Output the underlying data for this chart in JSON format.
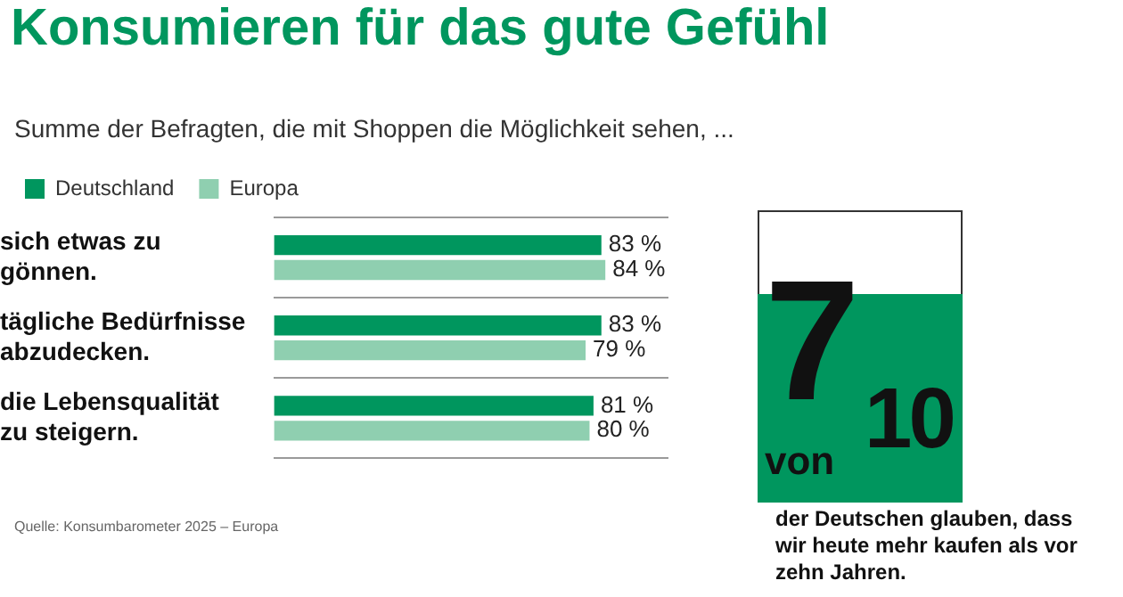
{
  "chart_data": [
    {
      "type": "bar",
      "orientation": "horizontal",
      "title": "Konsumieren für das gute Gefühl",
      "subtitle": "Summe der Befragten, die mit Shoppen die Möglichkeit sehen, ...",
      "categories": [
        "sich etwas zu gönnen.",
        "tägliche Bedürfnisse abzudecken.",
        "die Lebensqualität zu steigern."
      ],
      "series": [
        {
          "name": "Deutschland",
          "color": "#00965e",
          "values": [
            83,
            83,
            81
          ],
          "value_labels": [
            "83 %",
            "83 %",
            "81 %"
          ]
        },
        {
          "name": "Europa",
          "color": "#8fcfb0",
          "values": [
            84,
            79,
            80
          ],
          "value_labels": [
            "84 %",
            "79 %",
            "80 %"
          ]
        }
      ],
      "legend": "top left",
      "grid": "y",
      "tick_labels": "y",
      "annotations": [
        "Quelle: Konsumbarometer 2025 – Europa"
      ]
    },
    {
      "type": "other",
      "title": "7 von 10",
      "annotations": [
        "der Deutschen glauben, dass wir heute mehr kaufen als vor zehn Jahren."
      ]
    }
  ]
}
